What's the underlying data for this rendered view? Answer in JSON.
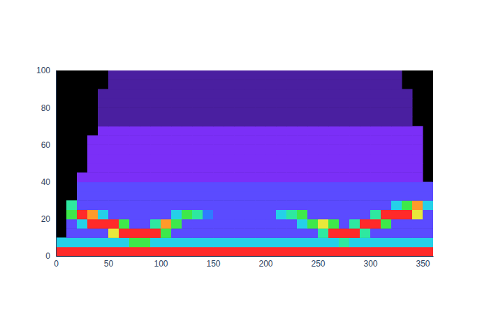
{
  "chart_data": {
    "type": "heatmap",
    "xbins": [
      0,
      10,
      20,
      30,
      40,
      50,
      60,
      70,
      80,
      90,
      100,
      110,
      120,
      130,
      140,
      150,
      160,
      170,
      180,
      190,
      200,
      210,
      220,
      230,
      240,
      250,
      260,
      270,
      280,
      290,
      300,
      310,
      320,
      330,
      340,
      350,
      360
    ],
    "ybins": [
      0,
      5,
      10,
      15,
      20,
      25,
      30,
      35,
      40,
      45,
      50,
      55,
      60,
      65,
      70,
      75,
      80,
      85,
      90,
      95,
      100
    ],
    "z": [
      [
        10,
        10,
        10,
        10,
        10,
        10,
        10,
        10,
        10,
        10,
        10,
        10,
        10,
        10,
        10,
        10,
        10,
        10,
        10,
        10,
        10,
        10,
        10,
        10,
        10,
        10,
        10,
        10,
        10,
        10,
        10,
        10,
        10,
        10,
        10,
        10
      ],
      [
        5,
        5,
        5,
        5,
        5,
        5,
        5,
        7,
        7,
        5,
        5,
        5,
        5,
        5,
        5,
        5,
        5,
        5,
        5,
        5,
        5,
        5,
        5,
        5,
        5,
        5,
        5,
        6,
        5,
        5,
        5,
        5,
        5,
        5,
        5,
        5
      ],
      [
        null,
        3,
        3,
        3,
        3,
        8,
        10,
        10,
        10,
        10,
        7,
        3,
        3,
        3,
        3,
        3,
        3,
        3,
        3,
        3,
        3,
        3,
        3,
        3,
        3,
        6,
        10,
        10,
        10,
        6,
        3,
        3,
        3,
        3,
        3,
        3
      ],
      [
        null,
        3,
        5,
        10,
        10,
        10,
        7,
        3,
        3,
        6,
        9,
        7,
        3,
        3,
        3,
        3,
        3,
        3,
        3,
        3,
        3,
        3,
        3,
        5,
        7,
        8,
        7,
        3,
        6,
        10,
        10,
        7,
        3,
        3,
        3,
        3
      ],
      [
        null,
        7,
        10,
        9,
        5,
        3,
        3,
        3,
        3,
        3,
        3,
        5,
        7,
        6,
        4,
        3,
        3,
        3,
        3,
        3,
        3,
        5,
        6,
        7,
        3,
        3,
        3,
        3,
        3,
        3,
        6,
        10,
        10,
        10,
        8,
        3
      ],
      [
        null,
        6,
        3,
        3,
        3,
        3,
        3,
        3,
        3,
        3,
        3,
        3,
        3,
        3,
        3,
        3,
        3,
        3,
        3,
        3,
        3,
        3,
        3,
        3,
        3,
        3,
        3,
        3,
        3,
        3,
        3,
        3,
        5,
        7,
        9,
        5
      ],
      [
        null,
        null,
        3,
        3,
        3,
        3,
        3,
        3,
        3,
        3,
        3,
        3,
        3,
        3,
        3,
        3,
        3,
        3,
        3,
        3,
        3,
        3,
        3,
        3,
        3,
        3,
        3,
        3,
        3,
        3,
        3,
        3,
        3,
        3,
        3,
        3
      ],
      [
        null,
        null,
        3,
        3,
        3,
        3,
        3,
        3,
        3,
        3,
        3,
        3,
        3,
        3,
        3,
        3,
        3,
        3,
        3,
        3,
        3,
        3,
        3,
        3,
        3,
        3,
        3,
        3,
        3,
        3,
        3,
        3,
        3,
        3,
        3,
        3
      ],
      [
        null,
        null,
        2,
        2,
        2,
        2,
        2,
        2,
        2,
        2,
        2,
        2,
        2,
        2,
        2,
        2,
        2,
        2,
        2,
        2,
        2,
        2,
        2,
        2,
        2,
        2,
        2,
        2,
        2,
        2,
        2,
        2,
        2,
        2,
        2,
        null
      ],
      [
        null,
        null,
        null,
        2,
        2,
        2,
        2,
        2,
        2,
        2,
        2,
        2,
        2,
        2,
        2,
        2,
        2,
        2,
        2,
        2,
        2,
        2,
        2,
        2,
        2,
        2,
        2,
        2,
        2,
        2,
        2,
        2,
        2,
        2,
        2,
        null
      ],
      [
        null,
        null,
        null,
        2,
        2,
        2,
        2,
        2,
        2,
        2,
        2,
        2,
        2,
        2,
        2,
        2,
        2,
        2,
        2,
        2,
        2,
        2,
        2,
        2,
        2,
        2,
        2,
        2,
        2,
        2,
        2,
        2,
        2,
        2,
        2,
        null
      ],
      [
        null,
        null,
        null,
        2,
        2,
        2,
        2,
        2,
        2,
        2,
        2,
        2,
        2,
        2,
        2,
        2,
        2,
        2,
        2,
        2,
        2,
        2,
        2,
        2,
        2,
        2,
        2,
        2,
        2,
        2,
        2,
        2,
        2,
        2,
        2,
        null
      ],
      [
        null,
        null,
        null,
        2,
        2,
        2,
        2,
        2,
        2,
        2,
        2,
        2,
        2,
        2,
        2,
        2,
        2,
        2,
        2,
        2,
        2,
        2,
        2,
        2,
        2,
        2,
        2,
        2,
        2,
        2,
        2,
        2,
        2,
        2,
        2,
        null
      ],
      [
        null,
        null,
        null,
        null,
        2,
        2,
        2,
        2,
        2,
        2,
        2,
        2,
        2,
        2,
        2,
        2,
        2,
        2,
        2,
        2,
        2,
        2,
        2,
        2,
        2,
        2,
        2,
        2,
        2,
        2,
        2,
        2,
        2,
        2,
        2,
        null
      ],
      [
        null,
        null,
        null,
        null,
        1,
        1,
        1,
        1,
        1,
        1,
        1,
        1,
        1,
        1,
        1,
        1,
        1,
        1,
        1,
        1,
        1,
        1,
        1,
        1,
        1,
        1,
        1,
        1,
        1,
        1,
        1,
        1,
        1,
        1,
        null,
        null
      ],
      [
        null,
        null,
        null,
        null,
        1,
        1,
        1,
        1,
        1,
        1,
        1,
        1,
        1,
        1,
        1,
        1,
        1,
        1,
        1,
        1,
        1,
        1,
        1,
        1,
        1,
        1,
        1,
        1,
        1,
        1,
        1,
        1,
        1,
        1,
        null,
        null
      ],
      [
        null,
        null,
        null,
        null,
        1,
        1,
        1,
        1,
        1,
        1,
        1,
        1,
        1,
        1,
        1,
        1,
        1,
        1,
        1,
        1,
        1,
        1,
        1,
        1,
        1,
        1,
        1,
        1,
        1,
        1,
        1,
        1,
        1,
        1,
        null,
        null
      ],
      [
        null,
        null,
        null,
        null,
        1,
        1,
        1,
        1,
        1,
        1,
        1,
        1,
        1,
        1,
        1,
        1,
        1,
        1,
        1,
        1,
        1,
        1,
        1,
        1,
        1,
        1,
        1,
        1,
        1,
        1,
        1,
        1,
        1,
        1,
        null,
        null
      ],
      [
        null,
        null,
        null,
        null,
        null,
        1,
        1,
        1,
        1,
        1,
        1,
        1,
        1,
        1,
        1,
        1,
        1,
        1,
        1,
        1,
        1,
        1,
        1,
        1,
        1,
        1,
        1,
        1,
        1,
        1,
        1,
        1,
        1,
        null,
        null,
        null
      ],
      [
        null,
        null,
        null,
        null,
        null,
        1,
        1,
        1,
        1,
        1,
        1,
        1,
        1,
        1,
        1,
        1,
        1,
        1,
        1,
        1,
        1,
        1,
        1,
        1,
        1,
        1,
        1,
        1,
        1,
        1,
        1,
        1,
        1,
        null,
        null,
        null
      ]
    ],
    "zlim": [
      0,
      10
    ],
    "xlim": [
      0,
      360
    ],
    "ylim": [
      0,
      100
    ],
    "xticks": [
      0,
      50,
      100,
      150,
      200,
      250,
      300,
      350
    ],
    "yticks": [
      0,
      20,
      40,
      60,
      80,
      100
    ]
  }
}
